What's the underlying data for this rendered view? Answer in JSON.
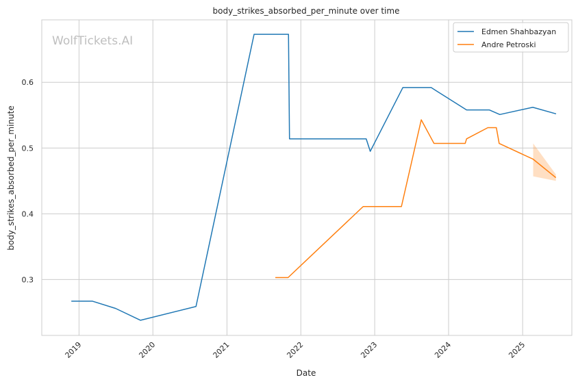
{
  "chart_data": {
    "type": "line",
    "title": "body_strikes_absorbed_per_minute over time",
    "xlabel": "Date",
    "ylabel": "body_strikes_absorbed_per_minute",
    "watermark": "WolfTickets.AI",
    "xlim": [
      "2018-07-01",
      "2025-09-01"
    ],
    "ylim": [
      0.215,
      0.695
    ],
    "x_ticks": [
      "2019",
      "2020",
      "2021",
      "2022",
      "2023",
      "2024",
      "2025"
    ],
    "y_ticks": [
      "0.3",
      "0.4",
      "0.5",
      "0.6"
    ],
    "grid": true,
    "legend_position": "top-right",
    "series": [
      {
        "name": "Edmen Shahbazyan",
        "color": "#1f77b4",
        "points": [
          [
            "2018-11-24",
            0.267
          ],
          [
            "2019-03-09",
            0.267
          ],
          [
            "2019-07-01",
            0.256
          ],
          [
            "2019-11-01",
            0.238
          ],
          [
            "2020-08-01",
            0.259
          ],
          [
            "2021-05-15",
            0.673
          ],
          [
            "2021-11-01",
            0.673
          ],
          [
            "2021-11-06",
            0.514
          ],
          [
            "2022-11-20",
            0.514
          ],
          [
            "2022-12-10",
            0.495
          ],
          [
            "2023-05-20",
            0.592
          ],
          [
            "2023-10-07",
            0.592
          ],
          [
            "2024-03-30",
            0.558
          ],
          [
            "2024-07-20",
            0.558
          ],
          [
            "2024-09-10",
            0.551
          ],
          [
            "2025-02-20",
            0.562
          ],
          [
            "2025-06-15",
            0.552
          ]
        ]
      },
      {
        "name": "Andre Petroski",
        "color": "#ff7f0e",
        "points": [
          [
            "2021-08-28",
            0.303
          ],
          [
            "2021-10-30",
            0.303
          ],
          [
            "2022-11-05",
            0.411
          ],
          [
            "2023-05-13",
            0.411
          ],
          [
            "2023-08-19",
            0.543
          ],
          [
            "2023-10-21",
            0.507
          ],
          [
            "2024-03-23",
            0.507
          ],
          [
            "2024-03-30",
            0.514
          ],
          [
            "2024-07-13",
            0.531
          ],
          [
            "2024-08-24",
            0.531
          ],
          [
            "2024-09-07",
            0.507
          ],
          [
            "2025-02-22",
            0.483
          ],
          [
            "2025-06-14",
            0.455
          ]
        ],
        "confidence_band": [
          [
            "2025-02-22",
            0.457,
            0.507
          ],
          [
            "2025-06-14",
            0.45,
            0.46
          ]
        ]
      }
    ]
  }
}
